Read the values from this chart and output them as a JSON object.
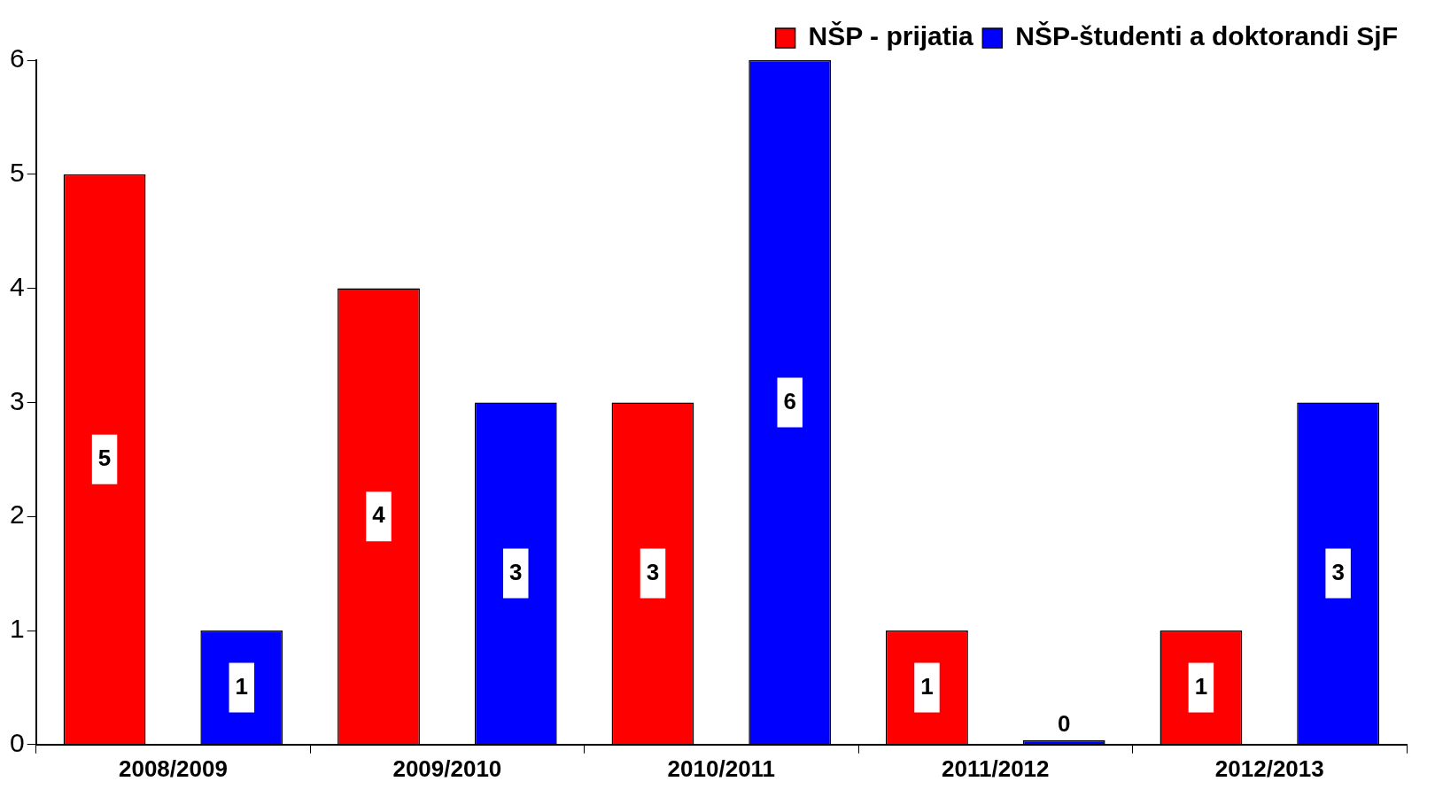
{
  "chart_data": {
    "type": "bar",
    "categories": [
      "2008/2009",
      "2009/2010",
      "2010/2011",
      "2011/2012",
      "2012/2013"
    ],
    "series": [
      {
        "name": "NŠP - prijatia",
        "color": "#ff0000",
        "values": [
          5,
          4,
          3,
          1,
          1
        ]
      },
      {
        "name": "NŠP-študenti a doktorandi SjF",
        "color": "#0000ff",
        "values": [
          1,
          3,
          6,
          0,
          3
        ]
      }
    ],
    "ylim": [
      0,
      6
    ],
    "yticks": [
      0,
      1,
      2,
      3,
      4,
      5,
      6
    ],
    "grid": false,
    "legend": "top right",
    "data_labels": true
  }
}
